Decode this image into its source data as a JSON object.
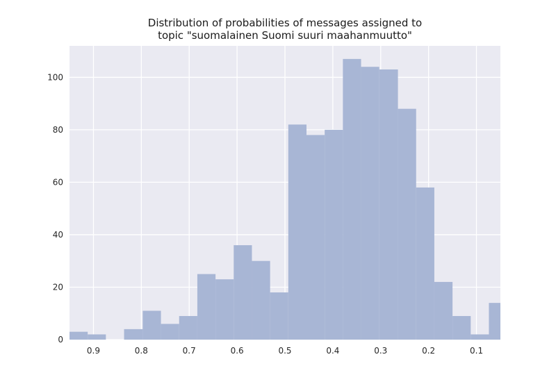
{
  "chart_data": {
    "type": "bar",
    "title_lines": [
      "Distribution of probabilities of messages assigned to",
      "topic \"suomalainen Suomi suuri maahanmuutto\""
    ],
    "xlabel": "",
    "ylabel": "",
    "x_axis_inverted": true,
    "xlim": [
      0.95,
      0.05
    ],
    "ylim": [
      0,
      112
    ],
    "x_ticks": [
      0.9,
      0.8,
      0.7,
      0.6,
      0.5,
      0.4,
      0.3,
      0.2,
      0.1
    ],
    "x_tick_labels": [
      "0.9",
      "0.8",
      "0.7",
      "0.6",
      "0.5",
      "0.4",
      "0.3",
      "0.2",
      "0.1"
    ],
    "y_ticks": [
      0,
      20,
      40,
      60,
      80,
      100
    ],
    "y_tick_labels": [
      "0",
      "20",
      "40",
      "60",
      "80",
      "100"
    ],
    "grid": true,
    "colors": {
      "bar": "#a8b6d5",
      "background": "#eaeaf2",
      "grid": "#ffffff"
    },
    "bins": [
      {
        "range": [
          0.95,
          0.912
        ],
        "count": 3
      },
      {
        "range": [
          0.912,
          0.874
        ],
        "count": 2
      },
      {
        "range": [
          0.874,
          0.836
        ],
        "count": 0
      },
      {
        "range": [
          0.836,
          0.797
        ],
        "count": 4
      },
      {
        "range": [
          0.797,
          0.759
        ],
        "count": 11
      },
      {
        "range": [
          0.759,
          0.721
        ],
        "count": 6
      },
      {
        "range": [
          0.721,
          0.683
        ],
        "count": 9
      },
      {
        "range": [
          0.683,
          0.645
        ],
        "count": 25
      },
      {
        "range": [
          0.645,
          0.607
        ],
        "count": 23
      },
      {
        "range": [
          0.607,
          0.569
        ],
        "count": 36
      },
      {
        "range": [
          0.569,
          0.531
        ],
        "count": 30
      },
      {
        "range": [
          0.531,
          0.493
        ],
        "count": 18
      },
      {
        "range": [
          0.493,
          0.455
        ],
        "count": 82
      },
      {
        "range": [
          0.455,
          0.417
        ],
        "count": 78
      },
      {
        "range": [
          0.417,
          0.379
        ],
        "count": 80
      },
      {
        "range": [
          0.379,
          0.341
        ],
        "count": 107
      },
      {
        "range": [
          0.341,
          0.303
        ],
        "count": 104
      },
      {
        "range": [
          0.303,
          0.264
        ],
        "count": 103
      },
      {
        "range": [
          0.264,
          0.226
        ],
        "count": 88
      },
      {
        "range": [
          0.226,
          0.188
        ],
        "count": 58
      },
      {
        "range": [
          0.188,
          0.15
        ],
        "count": 22
      },
      {
        "range": [
          0.15,
          0.112
        ],
        "count": 9
      },
      {
        "range": [
          0.112,
          0.074
        ],
        "count": 2
      },
      {
        "range": [
          0.074,
          0.036
        ],
        "count": 14
      }
    ]
  }
}
